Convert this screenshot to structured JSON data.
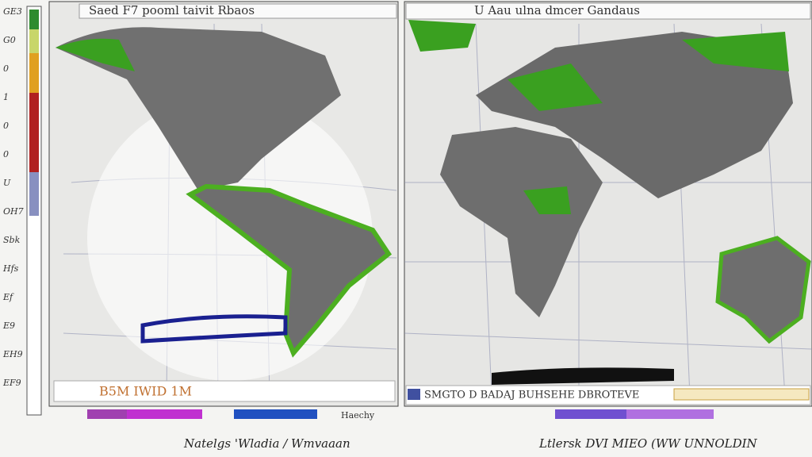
{
  "left_panel": {
    "title": "Saed F7 pooml taivit Rbaos",
    "footer": "B5M IWID 1M"
  },
  "right_panel": {
    "title": "U Aau ulna dmcer Gandaus",
    "footer": "SMGTO D BADAJ BUHSEHE DBROTEVE"
  },
  "scale_labels": [
    "GE3",
    "G0",
    "0",
    "1",
    "0",
    "0",
    "U",
    "OH7",
    "Sbk",
    "Hfs",
    "Ef",
    "E9",
    "EH9",
    "EF9"
  ],
  "legend_note": "Haechy",
  "captions": [
    "Natelgs 'Wladia / Wmvaaan",
    "Ltlersk DVI MIEO (WW UNNOLDIN"
  ]
}
